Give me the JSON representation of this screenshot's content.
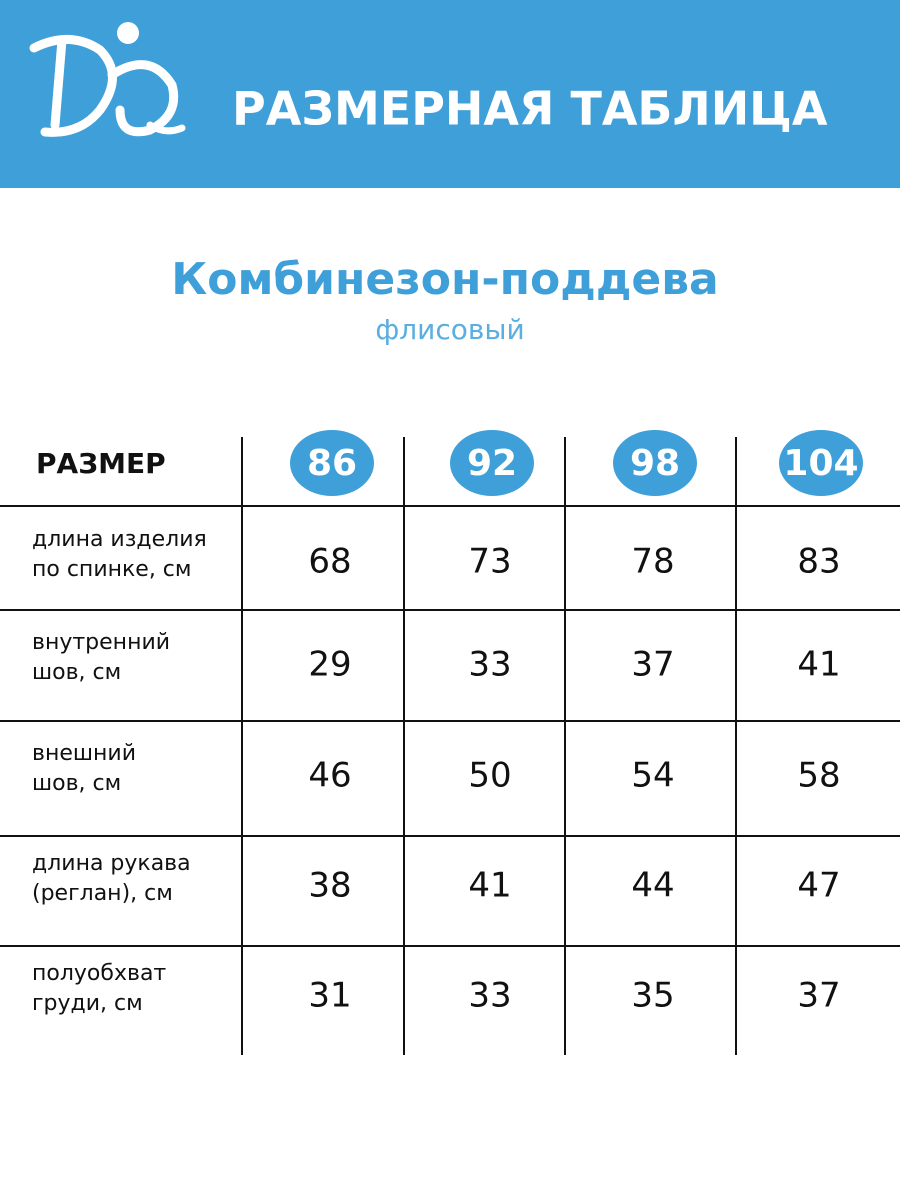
{
  "header": {
    "title": "РАЗМЕРНАЯ ТАБЛИЦА"
  },
  "product": {
    "title": "Комбинезон-поддева",
    "subtitle": "флисовый"
  },
  "table": {
    "header_label": "РАЗМЕР",
    "sizes": [
      86,
      92,
      98,
      104
    ],
    "rows": [
      {
        "label": [
          "длина изделия",
          "по спинке, см"
        ],
        "values": [
          68,
          73,
          78,
          83
        ]
      },
      {
        "label": [
          "внутренний",
          "шов, см"
        ],
        "values": [
          29,
          33,
          37,
          41
        ]
      },
      {
        "label": [
          "внешний",
          "шов, см"
        ],
        "values": [
          46,
          50,
          54,
          58
        ]
      },
      {
        "label": [
          "длина рукава",
          "(реглан), см"
        ],
        "values": [
          38,
          41,
          44,
          47
        ]
      },
      {
        "label": [
          "полуобхват",
          "груди, см"
        ],
        "values": [
          31,
          33,
          35,
          37
        ]
      }
    ]
  }
}
